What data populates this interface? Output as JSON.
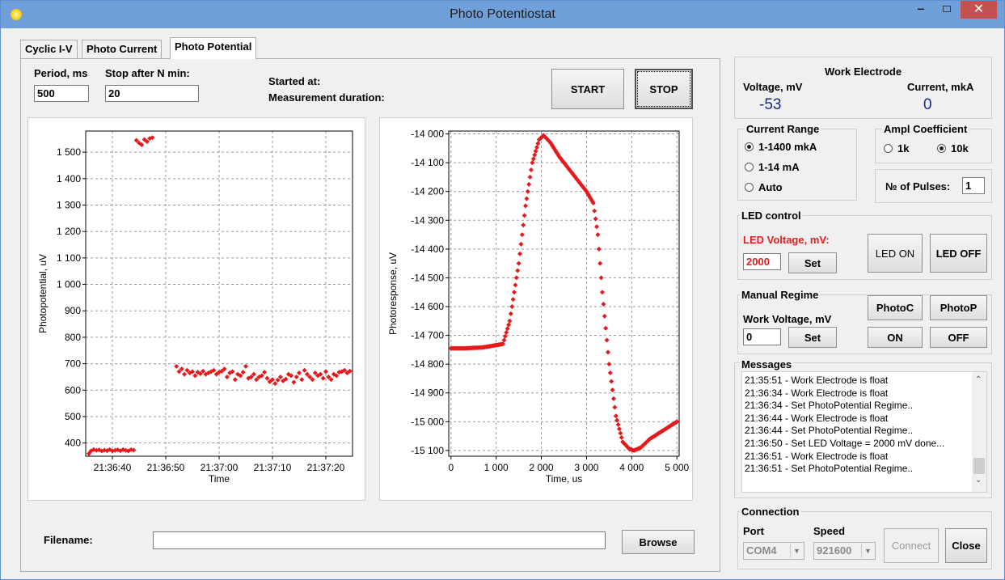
{
  "window": {
    "title": "Photo Potentiostat"
  },
  "tabs": [
    {
      "label": "Cyclic I-V"
    },
    {
      "label": "Photo Current"
    },
    {
      "label": "Photo Potential"
    }
  ],
  "params": {
    "period_label": "Period, ms",
    "period_value": "500",
    "stop_label": "Stop after N min:",
    "stop_value": "20",
    "started_label": "Started at:",
    "duration_label": "Measurement duration:",
    "start_button": "START",
    "stop_button": "STOP"
  },
  "filename": {
    "label": "Filename:",
    "value": "",
    "browse_button": "Browse"
  },
  "work_electrode": {
    "title": "Work Electrode",
    "voltage_label": "Voltage, mV",
    "voltage_value": "-53",
    "current_label": "Current, mkA",
    "current_value": "0",
    "value_color": "#1a2a8c"
  },
  "current_range": {
    "title": "Current Range",
    "options": [
      "1-1400 mkA",
      "1-14 mA",
      "Auto"
    ],
    "selected": 0
  },
  "ampl": {
    "title": "Ampl Coefficient",
    "options": [
      "1k",
      "10k"
    ],
    "selected": 1
  },
  "pulses": {
    "label": "№ of Pulses:",
    "value": "1"
  },
  "led_control": {
    "title": "LED control",
    "voltage_label": "LED Voltage, mV:",
    "voltage_label_color": "#e02020",
    "voltage_value": "2000",
    "set_button": "Set",
    "led_on_button": "LED ON",
    "led_off_button": "LED OFF"
  },
  "manual": {
    "title": "Manual Regime",
    "work_voltage_label": "Work Voltage, mV",
    "work_voltage_value": "0",
    "set_button": "Set",
    "photoc_button": "PhotoC",
    "photop_button": "PhotoP",
    "on_button": "ON",
    "off_button": "OFF"
  },
  "messages": {
    "title": "Messages",
    "items": [
      "21:35:51 - Work Electrode is float",
      "21:36:34 - Work Electrode is float",
      "21:36:34 - Set PhotoPotential Regime..",
      "21:36:44 - Work Electrode is float",
      "21:36:44 - Set PhotoPotential Regime..",
      "21:36:50 - Set LED Voltage = 2000 mV done...",
      "21:36:51 - Work Electrode is float",
      "21:36:51 - Set PhotoPotential Regime.."
    ]
  },
  "connection": {
    "title": "Connection",
    "port_label": "Port",
    "port_value": "COM4",
    "speed_label": "Speed",
    "speed_value": "921600",
    "connect_button": "Connect",
    "close_button": "Close"
  },
  "chart_data": [
    {
      "type": "scatter",
      "title": "",
      "xlabel": "Time",
      "ylabel": "Photopotential, uV",
      "xticks": [
        "21:36:40",
        "21:36:50",
        "21:37:00",
        "21:37:10",
        "21:37:20"
      ],
      "xlim_seconds": [
        35,
        85
      ],
      "xtick_seconds": [
        40,
        50,
        60,
        70,
        80
      ],
      "yticks": [
        400,
        500,
        600,
        700,
        800,
        900,
        1000,
        1100,
        1200,
        1300,
        1400,
        1500
      ],
      "ytick_labels": [
        "400",
        "500",
        "600",
        "700",
        "800",
        "900",
        "1 000",
        "1 100",
        "1 200",
        "1 300",
        "1 400",
        "1 500"
      ],
      "ylim": [
        350,
        1580
      ],
      "grid": true,
      "color": "#e41a1c",
      "series": [
        {
          "x": [
            35.6,
            36.0,
            36.5,
            37.0,
            37.5,
            38.0,
            38.5,
            39.0,
            39.5,
            40.0,
            40.5,
            41.0,
            41.5,
            42.0,
            42.5,
            43.0,
            43.5,
            44.0,
            44.5,
            45.0,
            45.5,
            46.0,
            46.5,
            47.0,
            47.5
          ],
          "y": [
            360,
            370,
            375,
            372,
            374,
            370,
            373,
            371,
            375,
            370,
            372,
            374,
            371,
            375,
            372,
            370,
            375,
            373,
            1545,
            1535,
            1528,
            1548,
            1540,
            1552,
            1555
          ]
        },
        {
          "x": [
            52.0,
            52.5,
            53.0,
            53.5,
            54.0,
            54.5,
            55.0,
            55.5,
            56.0,
            56.5,
            57.0,
            57.5,
            58.0,
            58.5,
            59.0,
            59.5,
            60.0,
            60.5,
            61.0,
            61.5,
            62.0,
            62.5,
            63.0,
            63.5,
            64.0,
            64.5,
            65.0,
            65.5,
            66.0,
            66.5,
            67.0,
            67.5,
            68.0,
            68.5,
            69.0,
            69.5,
            70.0,
            70.5,
            71.0,
            71.5,
            72.0,
            72.5,
            73.0,
            73.5,
            74.0,
            74.5,
            75.0,
            75.5,
            76.0,
            76.5,
            77.0,
            77.5,
            78.0,
            78.5,
            79.0,
            79.5,
            80.0,
            80.5,
            81.0,
            81.5,
            82.0,
            82.5,
            83.0,
            83.5,
            84.0,
            84.5
          ],
          "y": [
            690,
            670,
            680,
            660,
            675,
            665,
            670,
            655,
            668,
            662,
            672,
            660,
            665,
            670,
            675,
            660,
            668,
            672,
            680,
            650,
            665,
            670,
            640,
            660,
            655,
            668,
            690,
            645,
            650,
            660,
            640,
            650,
            655,
            668,
            645,
            632,
            640,
            625,
            638,
            650,
            635,
            642,
            660,
            655,
            630,
            650,
            665,
            640,
            675,
            660,
            650,
            640,
            665,
            655,
            660,
            645,
            670,
            650,
            640,
            660,
            655,
            668,
            670,
            675,
            665,
            672
          ]
        }
      ]
    },
    {
      "type": "scatter",
      "title": "",
      "xlabel": "Time, us",
      "ylabel": "Photoresponse, uV",
      "xticks": [
        0,
        1000,
        2000,
        3000,
        4000,
        5000
      ],
      "xtick_labels": [
        "0",
        "1 000",
        "2 000",
        "3 000",
        "4 000",
        "5 000"
      ],
      "xlim": [
        -50,
        5050
      ],
      "yticks": [
        -15100,
        -15000,
        -14900,
        -14800,
        -14700,
        -14600,
        -14500,
        -14400,
        -14300,
        -14200,
        -14100,
        -14000
      ],
      "ytick_labels": [
        "-15 100",
        "-15 000",
        "-14 900",
        "-14 800",
        "-14 700",
        "-14 600",
        "-14 500",
        "-14 400",
        "-14 300",
        "-14 200",
        "-14 100",
        "-14 000"
      ],
      "ylim": [
        -15120,
        -13990
      ],
      "grid": true,
      "color": "#e41a1c",
      "curve_keypoints": {
        "x": [
          0,
          300,
          700,
          1150,
          1300,
          1500,
          1650,
          1800,
          1950,
          2050,
          2200,
          2400,
          2600,
          2800,
          3000,
          3150,
          3250,
          3350,
          3500,
          3650,
          3800,
          3950,
          4050,
          4200,
          4400,
          4600,
          4800,
          5000
        ],
        "y": [
          -14745,
          -14745,
          -14742,
          -14730,
          -14650,
          -14450,
          -14250,
          -14100,
          -14020,
          -14005,
          -14030,
          -14080,
          -14120,
          -14160,
          -14200,
          -14240,
          -14350,
          -14550,
          -14800,
          -14980,
          -15070,
          -15095,
          -15100,
          -15090,
          -15060,
          -15040,
          -15020,
          -15000
        ]
      }
    }
  ]
}
